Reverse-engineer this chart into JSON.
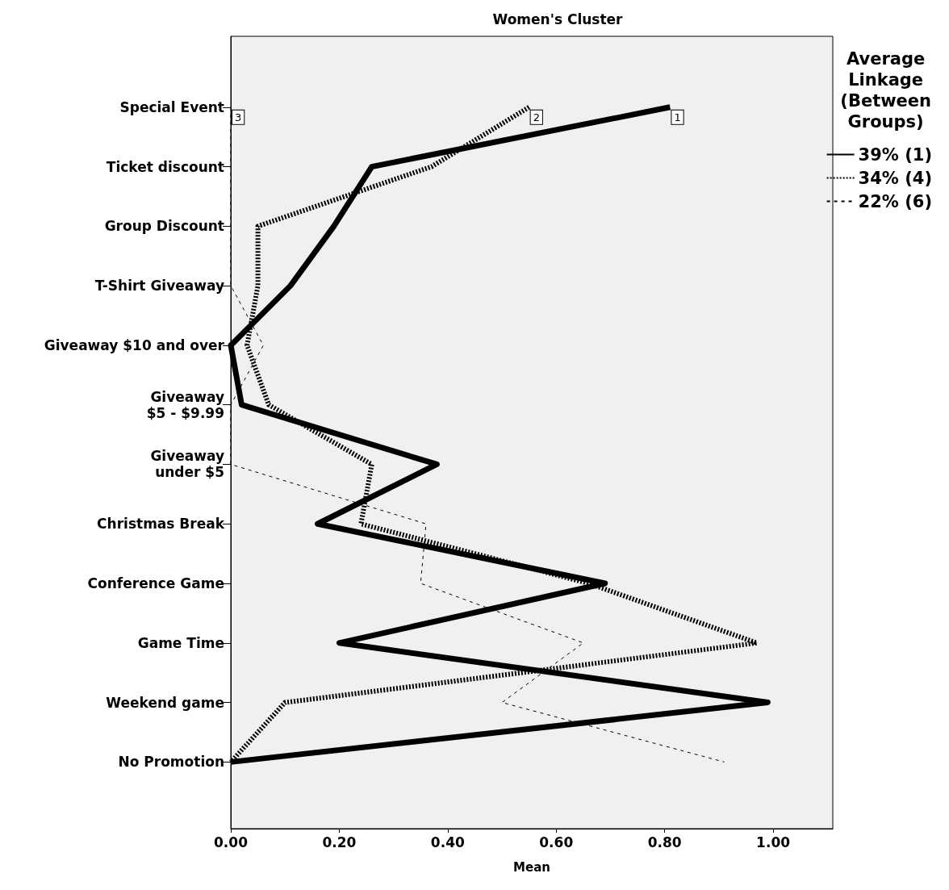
{
  "chart_data": {
    "type": "line",
    "orientation": "horizontal",
    "title": "Women's Cluster",
    "xlabel": "Mean",
    "legend_title": "Average Linkage (Between Groups)",
    "categories": [
      "Special Event",
      "Ticket discount",
      "Group Discount",
      "T-Shirt Giveaway",
      "Giveaway $10 and over",
      "Giveaway\n$5 - $9.99",
      "Giveaway\nunder $5",
      "Christmas Break",
      "Conference Game",
      "Game Time",
      "Weekend game",
      "No Promotion"
    ],
    "series": [
      {
        "name": "39% (1)",
        "color": "#000000",
        "line_style": "solid",
        "values": [
          0.81,
          0.26,
          0.19,
          0.11,
          0.0,
          0.02,
          0.38,
          0.16,
          0.69,
          0.2,
          0.99,
          0.0
        ]
      },
      {
        "name": "34% (4)",
        "color": "#000000",
        "line_style": "dotted",
        "values": [
          0.55,
          0.37,
          0.05,
          0.05,
          0.03,
          0.07,
          0.26,
          0.24,
          0.66,
          0.97,
          0.1,
          0.0
        ]
      },
      {
        "name": "22% (6)",
        "color": "#000000",
        "line_style": "dashed",
        "values": [
          0.0,
          0.0,
          0.0,
          0.0,
          0.06,
          0.0,
          0.0,
          0.36,
          0.35,
          0.65,
          0.5,
          0.91
        ]
      }
    ],
    "annotations": [
      {
        "text": "1",
        "x": 0.81,
        "y": "Special Event"
      },
      {
        "text": "2",
        "x": 0.55,
        "y": "Special Event"
      },
      {
        "text": "3",
        "x": 0.0,
        "y": "Special Event"
      }
    ],
    "xlim": [
      0,
      1.11
    ],
    "xticks": [
      {
        "value": 0,
        "label": "0.00"
      },
      {
        "value": 0.2,
        "label": "0.20"
      },
      {
        "value": 0.4,
        "label": "0.40"
      },
      {
        "value": 0.6,
        "label": "0.60"
      },
      {
        "value": 0.8,
        "label": "0.80"
      },
      {
        "value": 1.0,
        "label": "1.00"
      }
    ],
    "grid": false,
    "marker": "none",
    "legend": "top right"
  }
}
